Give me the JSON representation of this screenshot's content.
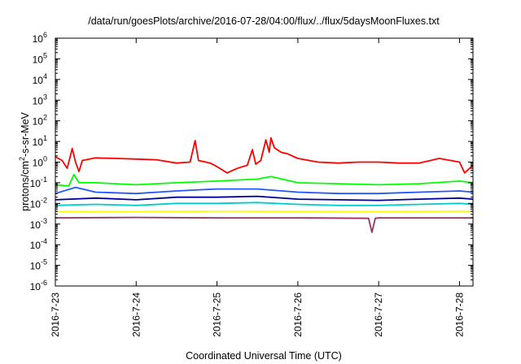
{
  "chart_data": {
    "type": "line",
    "title": "/data/run/goesPlots/archive/2016-07-28/04:00/flux/../flux/5daysMoonFluxes.txt",
    "xlabel": "Coordinated Universal Time (UTC)",
    "ylabel_base": "protons/cm",
    "ylabel_sup": "2",
    "ylabel_rest": "-s-sr-MeV",
    "y_scale": "log",
    "ylim": [
      1e-06,
      1000000.0
    ],
    "y_ticks": [
      {
        "base": "10",
        "exp": "-6",
        "value": 1e-06
      },
      {
        "base": "10",
        "exp": "-5",
        "value": 1e-05
      },
      {
        "base": "10",
        "exp": "-4",
        "value": 0.0001
      },
      {
        "base": "10",
        "exp": "-3",
        "value": 0.001
      },
      {
        "base": "10",
        "exp": "-2",
        "value": 0.01
      },
      {
        "base": "10",
        "exp": "-1",
        "value": 0.1
      },
      {
        "base": "10",
        "exp": "0",
        "value": 1
      },
      {
        "base": "10",
        "exp": "1",
        "value": 10
      },
      {
        "base": "10",
        "exp": "2",
        "value": 100
      },
      {
        "base": "10",
        "exp": "3",
        "value": 1000
      },
      {
        "base": "10",
        "exp": "4",
        "value": 10000
      },
      {
        "base": "10",
        "exp": "5",
        "value": 100000
      },
      {
        "base": "10",
        "exp": "6",
        "value": 1000000
      }
    ],
    "xlim": [
      "2016-7-23",
      "2016-7-28 04:00"
    ],
    "x_ticks": [
      "2016-7-23",
      "2016-7-24",
      "2016-7-25",
      "2016-7-26",
      "2016-7-27",
      "2016-7-28"
    ],
    "grid": false,
    "legend": "none",
    "series": [
      {
        "color": "#ff0000",
        "points": [
          [
            "2016-7-23 00:00",
            1.8
          ],
          [
            "2016-7-23 02:00",
            1.2
          ],
          [
            "2016-7-23 03:30",
            0.5
          ],
          [
            "2016-7-23 04:00",
            1.0
          ],
          [
            "2016-7-23 05:00",
            4.5
          ],
          [
            "2016-7-23 06:00",
            1.0
          ],
          [
            "2016-7-23 07:00",
            0.35
          ],
          [
            "2016-7-23 08:00",
            1.2
          ],
          [
            "2016-7-23 12:00",
            1.6
          ],
          [
            "2016-7-23 18:00",
            1.5
          ],
          [
            "2016-7-24 00:00",
            1.4
          ],
          [
            "2016-7-24 06:00",
            1.3
          ],
          [
            "2016-7-24 12:00",
            0.9
          ],
          [
            "2016-7-24 16:00",
            1.0
          ],
          [
            "2016-7-24 17:30",
            11
          ],
          [
            "2016-7-24 18:30",
            1.2
          ],
          [
            "2016-7-24 22:00",
            0.9
          ],
          [
            "2016-7-25 00:00",
            0.6
          ],
          [
            "2016-7-25 03:00",
            0.3
          ],
          [
            "2016-7-25 06:00",
            0.5
          ],
          [
            "2016-7-25 09:00",
            0.7
          ],
          [
            "2016-7-25 10:30",
            4.0
          ],
          [
            "2016-7-25 11:30",
            0.8
          ],
          [
            "2016-7-25 13:00",
            1.2
          ],
          [
            "2016-7-25 14:30",
            12
          ],
          [
            "2016-7-25 15:30",
            3.0
          ],
          [
            "2016-7-25 16:00",
            15
          ],
          [
            "2016-7-25 17:00",
            5.0
          ],
          [
            "2016-7-25 19:00",
            3.0
          ],
          [
            "2016-7-25 21:00",
            2.5
          ],
          [
            "2016-7-26 00:00",
            1.5
          ],
          [
            "2016-7-26 06:00",
            1.0
          ],
          [
            "2016-7-26 12:00",
            0.9
          ],
          [
            "2016-7-26 18:00",
            1.0
          ],
          [
            "2016-7-27 00:00",
            1.0
          ],
          [
            "2016-7-27 06:00",
            0.9
          ],
          [
            "2016-7-27 12:00",
            0.9
          ],
          [
            "2016-7-27 18:00",
            1.5
          ],
          [
            "2016-7-28 00:00",
            1.0
          ],
          [
            "2016-7-28 01:30",
            0.3
          ],
          [
            "2016-7-28 03:00",
            0.5
          ],
          [
            "2016-7-28 04:00",
            0.7
          ]
        ]
      },
      {
        "color": "#00ff00",
        "points": [
          [
            "2016-7-23 00:00",
            0.08
          ],
          [
            "2016-7-23 04:00",
            0.07
          ],
          [
            "2016-7-23 05:30",
            0.25
          ],
          [
            "2016-7-23 07:00",
            0.1
          ],
          [
            "2016-7-23 12:00",
            0.1
          ],
          [
            "2016-7-24 00:00",
            0.08
          ],
          [
            "2016-7-24 12:00",
            0.1
          ],
          [
            "2016-7-25 00:00",
            0.12
          ],
          [
            "2016-7-25 12:00",
            0.15
          ],
          [
            "2016-7-25 16:00",
            0.2
          ],
          [
            "2016-7-26 00:00",
            0.1
          ],
          [
            "2016-7-26 12:00",
            0.09
          ],
          [
            "2016-7-27 00:00",
            0.08
          ],
          [
            "2016-7-27 12:00",
            0.09
          ],
          [
            "2016-7-28 00:00",
            0.12
          ],
          [
            "2016-7-28 04:00",
            0.1
          ]
        ]
      },
      {
        "color": "#2255ff",
        "points": [
          [
            "2016-7-23 00:00",
            0.03
          ],
          [
            "2016-7-23 06:00",
            0.06
          ],
          [
            "2016-7-23 12:00",
            0.035
          ],
          [
            "2016-7-24 00:00",
            0.03
          ],
          [
            "2016-7-24 12:00",
            0.04
          ],
          [
            "2016-7-25 00:00",
            0.05
          ],
          [
            "2016-7-25 12:00",
            0.05
          ],
          [
            "2016-7-26 00:00",
            0.035
          ],
          [
            "2016-7-26 12:00",
            0.03
          ],
          [
            "2016-7-27 00:00",
            0.03
          ],
          [
            "2016-7-27 12:00",
            0.035
          ],
          [
            "2016-7-28 00:00",
            0.04
          ],
          [
            "2016-7-28 04:00",
            0.035
          ]
        ]
      },
      {
        "color": "#000099",
        "points": [
          [
            "2016-7-23 00:00",
            0.015
          ],
          [
            "2016-7-23 12:00",
            0.018
          ],
          [
            "2016-7-24 00:00",
            0.015
          ],
          [
            "2016-7-24 12:00",
            0.02
          ],
          [
            "2016-7-25 00:00",
            0.02
          ],
          [
            "2016-7-25 12:00",
            0.022
          ],
          [
            "2016-7-26 00:00",
            0.016
          ],
          [
            "2016-7-26 12:00",
            0.015
          ],
          [
            "2016-7-27 00:00",
            0.014
          ],
          [
            "2016-7-27 12:00",
            0.016
          ],
          [
            "2016-7-28 00:00",
            0.018
          ],
          [
            "2016-7-28 04:00",
            0.016
          ]
        ]
      },
      {
        "color": "#00cccc",
        "points": [
          [
            "2016-7-23 00:00",
            0.008
          ],
          [
            "2016-7-23 12:00",
            0.009
          ],
          [
            "2016-7-24 00:00",
            0.008
          ],
          [
            "2016-7-24 12:00",
            0.01
          ],
          [
            "2016-7-25 00:00",
            0.01
          ],
          [
            "2016-7-25 12:00",
            0.011
          ],
          [
            "2016-7-26 00:00",
            0.009
          ],
          [
            "2016-7-26 12:00",
            0.008
          ],
          [
            "2016-7-27 00:00",
            0.008
          ],
          [
            "2016-7-27 12:00",
            0.009
          ],
          [
            "2016-7-28 00:00",
            0.01
          ],
          [
            "2016-7-28 04:00",
            0.009
          ]
        ]
      },
      {
        "color": "#ffff00",
        "points": [
          [
            "2016-7-23 00:00",
            0.004
          ],
          [
            "2016-7-24 00:00",
            0.004
          ],
          [
            "2016-7-25 00:00",
            0.0042
          ],
          [
            "2016-7-26 00:00",
            0.0041
          ],
          [
            "2016-7-27 00:00",
            0.004
          ],
          [
            "2016-7-28 00:00",
            0.0042
          ],
          [
            "2016-7-28 04:00",
            0.0041
          ]
        ]
      },
      {
        "color": "#993366",
        "points": [
          [
            "2016-7-23 00:00",
            0.002
          ],
          [
            "2016-7-24 00:00",
            0.0021
          ],
          [
            "2016-7-25 00:00",
            0.002
          ],
          [
            "2016-7-26 00:00",
            0.002
          ],
          [
            "2016-7-26 21:00",
            0.0019
          ],
          [
            "2016-7-26 22:00",
            0.0004
          ],
          [
            "2016-7-26 23:00",
            0.0019
          ],
          [
            "2016-7-27 00:00",
            0.002
          ],
          [
            "2016-7-28 00:00",
            0.002
          ],
          [
            "2016-7-28 04:00",
            0.002
          ]
        ]
      }
    ]
  }
}
